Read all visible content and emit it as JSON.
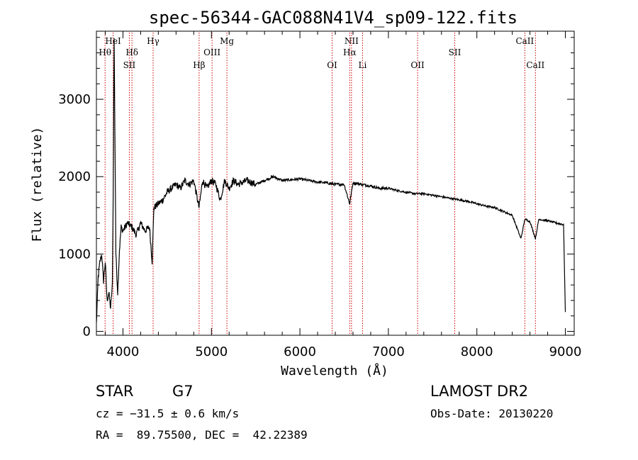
{
  "chart_data": {
    "type": "line",
    "title": "spec-56344-GAC088N41V4_sp09-122.fits",
    "xlabel": "Wavelength (Å)",
    "ylabel": "Flux (relative)",
    "xlim": [
      3700,
      9100
    ],
    "ylim": [
      -50,
      3880
    ],
    "xticks": [
      4000,
      5000,
      6000,
      7000,
      8000,
      9000
    ],
    "yticks": [
      0,
      1000,
      2000,
      3000
    ],
    "grid": false,
    "line_color": "#000000",
    "marker_color": "#cc0000",
    "series": [
      {
        "x": [
          3700,
          3720,
          3740,
          3760,
          3780,
          3800,
          3820,
          3840,
          3860,
          3880,
          3890,
          3900,
          3920,
          3940,
          3960,
          3980,
          4000,
          4050,
          4100,
          4150,
          4200,
          4250,
          4300,
          4330,
          4350,
          4400,
          4450,
          4500,
          4550,
          4600,
          4650,
          4700,
          4750,
          4800,
          4860,
          4900,
          4950,
          5000,
          5050,
          5100,
          5150,
          5200,
          5250,
          5300,
          5400,
          5500,
          5600,
          5700,
          5800,
          5900,
          6000,
          6100,
          6200,
          6300,
          6400,
          6500,
          6562,
          6600,
          6700,
          6800,
          6900,
          7000,
          7100,
          7200,
          7300,
          7400,
          7500,
          7600,
          7700,
          7800,
          7900,
          8000,
          8100,
          8200,
          8300,
          8400,
          8498,
          8542,
          8600,
          8662,
          8700,
          8800,
          8900,
          8980,
          9000
        ],
        "y": [
          100,
          700,
          900,
          1000,
          650,
          900,
          400,
          500,
          300,
          600,
          1800,
          3800,
          1000,
          500,
          1050,
          1350,
          1300,
          1400,
          1350,
          1250,
          1400,
          1300,
          1350,
          900,
          1600,
          1650,
          1700,
          1800,
          1850,
          1900,
          1850,
          1950,
          1900,
          1950,
          1600,
          1950,
          1850,
          1950,
          1900,
          1700,
          1950,
          1850,
          1950,
          1900,
          1950,
          1900,
          1950,
          2000,
          1950,
          1960,
          1970,
          1950,
          1930,
          1920,
          1900,
          1900,
          1650,
          1920,
          1900,
          1880,
          1850,
          1850,
          1820,
          1800,
          1780,
          1780,
          1760,
          1740,
          1720,
          1700,
          1680,
          1650,
          1620,
          1600,
          1550,
          1500,
          1200,
          1450,
          1420,
          1200,
          1450,
          1430,
          1400,
          1380,
          250
        ]
      }
    ],
    "lines": [
      {
        "label": "Hθ",
        "wave": 3798,
        "row": 2
      },
      {
        "label": "HeI",
        "wave": 3889,
        "row": 1
      },
      {
        "label": "Hδ",
        "wave": 4102,
        "row": 2
      },
      {
        "label": "SII",
        "wave": 4072,
        "row": 3
      },
      {
        "label": "Hγ",
        "wave": 4341,
        "row": 1
      },
      {
        "label": "Hβ",
        "wave": 4861,
        "row": 3
      },
      {
        "label": "OIII",
        "wave": 5007,
        "row": 2
      },
      {
        "label": "Mg",
        "wave": 5175,
        "row": 1
      },
      {
        "label": "OI",
        "wave": 6364,
        "row": 3
      },
      {
        "label": "NII",
        "wave": 6583,
        "row": 1
      },
      {
        "label": "Hα",
        "wave": 6563,
        "row": 2
      },
      {
        "label": "Li",
        "wave": 6708,
        "row": 3
      },
      {
        "label": "OII",
        "wave": 7330,
        "row": 3
      },
      {
        "label": "SII",
        "wave": 7750,
        "row": 2
      },
      {
        "label": "CaII",
        "wave": 8542,
        "row": 1
      },
      {
        "label": "CaII",
        "wave": 8662,
        "row": 3
      }
    ]
  },
  "info": {
    "object_class": "STAR",
    "subclass": "G7",
    "survey": "LAMOST DR2",
    "cz": "cz = −31.5 ± 0.6 km/s",
    "obs_date": "Obs-Date: 20130220",
    "coords": "RA =  89.75500, DEC =  42.22389"
  }
}
